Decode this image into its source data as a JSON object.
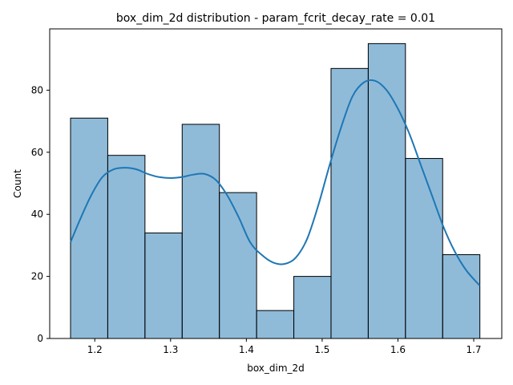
{
  "chart_data": {
    "type": "bar",
    "title": "box_dim_2d distribution - param_fcrit_decay_rate = 0.01",
    "xlabel": "box_dim_2d",
    "ylabel": "Count",
    "xlim": [
      1.1405,
      1.737
    ],
    "ylim": [
      0,
      99.75
    ],
    "bins": [
      {
        "x0": 1.168,
        "x1": 1.2171,
        "count": 71
      },
      {
        "x0": 1.2171,
        "x1": 1.2662,
        "count": 59
      },
      {
        "x0": 1.2662,
        "x1": 1.3153,
        "count": 34
      },
      {
        "x0": 1.3153,
        "x1": 1.3644,
        "count": 69
      },
      {
        "x0": 1.3644,
        "x1": 1.4135,
        "count": 47
      },
      {
        "x0": 1.4135,
        "x1": 1.4626,
        "count": 9
      },
      {
        "x0": 1.4626,
        "x1": 1.5117,
        "count": 20
      },
      {
        "x0": 1.5117,
        "x1": 1.5608,
        "count": 87
      },
      {
        "x0": 1.5608,
        "x1": 1.6099,
        "count": 95
      },
      {
        "x0": 1.6099,
        "x1": 1.659,
        "count": 58
      },
      {
        "x0": 1.659,
        "x1": 1.7081,
        "count": 27
      }
    ],
    "kde": {
      "x": [
        1.168,
        1.18,
        1.195,
        1.21,
        1.225,
        1.24,
        1.255,
        1.27,
        1.285,
        1.3,
        1.315,
        1.33,
        1.345,
        1.36,
        1.375,
        1.39,
        1.405,
        1.42,
        1.435,
        1.45,
        1.465,
        1.48,
        1.495,
        1.51,
        1.525,
        1.54,
        1.555,
        1.57,
        1.585,
        1.6,
        1.615,
        1.63,
        1.645,
        1.66,
        1.675,
        1.69,
        1.708
      ],
      "y": [
        31,
        38,
        46,
        52,
        54.5,
        55,
        54.5,
        53,
        52,
        51.7,
        52,
        52.8,
        53,
        51,
        46,
        39,
        31,
        27,
        24.5,
        24,
        26,
        32,
        43,
        56,
        68,
        78,
        82.5,
        83,
        80,
        74,
        66,
        56,
        46,
        36,
        28,
        22,
        17
      ]
    },
    "xticks": [
      {
        "value": 1.2,
        "label": "1.2"
      },
      {
        "value": 1.3,
        "label": "1.3"
      },
      {
        "value": 1.4,
        "label": "1.4"
      },
      {
        "value": 1.5,
        "label": "1.5"
      },
      {
        "value": 1.6,
        "label": "1.6"
      },
      {
        "value": 1.7,
        "label": "1.7"
      }
    ],
    "yticks": [
      {
        "value": 0,
        "label": "0"
      },
      {
        "value": 20,
        "label": "20"
      },
      {
        "value": 40,
        "label": "40"
      },
      {
        "value": 60,
        "label": "60"
      },
      {
        "value": 80,
        "label": "80"
      }
    ],
    "bar_color": "#1f77b4",
    "bar_opacity": 0.5,
    "line_color": "#1f77b4",
    "grid": false,
    "legend": "none"
  }
}
